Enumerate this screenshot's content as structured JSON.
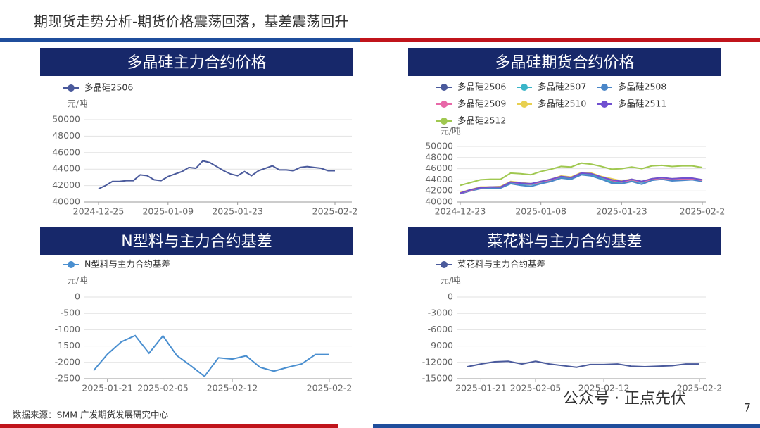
{
  "title": "期现货走势分析-期货价格震荡回落，基差震荡回升",
  "source": "数据来源：SMM 广发期货发展研究中心",
  "watermark": "公众号 · 正点先伏",
  "page_number": "7",
  "chart_data": [
    {
      "type": "line",
      "title": "多晶硅主力合约价格",
      "y_unit": "元/吨",
      "categories": [
        "2024-12-25",
        null,
        null,
        null,
        null,
        null,
        null,
        null,
        null,
        null,
        "2025-01-09",
        null,
        null,
        null,
        null,
        null,
        null,
        null,
        null,
        null,
        "2025-01-23",
        null,
        null,
        null,
        null,
        null,
        null,
        null,
        null,
        null,
        null,
        null,
        null,
        null,
        "2025-02-2"
      ],
      "series": [
        {
          "name": "多晶硅2506",
          "color": "#4a5a9c",
          "values": [
            41600,
            42000,
            42500,
            42500,
            42600,
            42600,
            43300,
            43200,
            42700,
            42600,
            43100,
            43400,
            43700,
            44200,
            44100,
            45000,
            44800,
            44300,
            43800,
            43400,
            43200,
            43700,
            43200,
            43800,
            44100,
            44400,
            43900,
            43900,
            43800,
            44200,
            44300,
            44200,
            44100,
            43800,
            43800
          ]
        }
      ],
      "ylim": [
        40000,
        50000
      ],
      "yticks": [
        40000,
        42000,
        44000,
        46000,
        48000,
        50000
      ],
      "grid": true
    },
    {
      "type": "line",
      "title": "多晶硅期货合约价格",
      "y_unit": "元/吨",
      "categories": [
        "2024-12-23",
        null,
        null,
        null,
        null,
        null,
        null,
        null,
        "2025-01-08",
        null,
        null,
        null,
        null,
        null,
        null,
        null,
        "2025-01-23",
        null,
        null,
        null,
        null,
        null,
        null,
        null,
        "2025-02-2"
      ],
      "series": [
        {
          "name": "多晶硅2506",
          "color": "#4a5a9c",
          "values": [
            41500,
            42000,
            42600,
            42600,
            42700,
            43500,
            43300,
            43200,
            43600,
            44000,
            44500,
            44300,
            45200,
            45000,
            44400,
            43800,
            43500,
            44000,
            43600,
            44100,
            44300,
            44000,
            44100,
            44200,
            43900
          ]
        },
        {
          "name": "多晶硅2507",
          "color": "#3ab5c8",
          "values": [
            41600,
            42100,
            42500,
            42600,
            42600,
            43400,
            43200,
            43100,
            43500,
            43900,
            44400,
            44200,
            45100,
            44900,
            44300,
            43600,
            43400,
            43900,
            43500,
            44000,
            44200,
            43900,
            44000,
            44100,
            43800
          ]
        },
        {
          "name": "多晶硅2508",
          "color": "#4a86c8",
          "values": [
            41500,
            42000,
            42400,
            42500,
            42500,
            43300,
            43000,
            42800,
            43300,
            43700,
            44300,
            44100,
            44900,
            44700,
            44100,
            43400,
            43300,
            43700,
            43200,
            43900,
            44100,
            43800,
            43900,
            44000,
            43700
          ]
        },
        {
          "name": "多晶硅2509",
          "color": "#e868a8",
          "values": [
            41600,
            42100,
            42600,
            42700,
            42700,
            43600,
            43300,
            43200,
            43600,
            44000,
            44600,
            44400,
            45200,
            45100,
            44500,
            43900,
            43600,
            44000,
            43600,
            44100,
            44300,
            44100,
            44200,
            44200,
            43900
          ]
        },
        {
          "name": "多晶硅2510",
          "color": "#e8d050",
          "values": [
            41700,
            42200,
            42700,
            42700,
            42800,
            43700,
            43500,
            43300,
            43700,
            44100,
            44700,
            44500,
            45300,
            45200,
            44600,
            44200,
            43800,
            44100,
            43700,
            44200,
            44400,
            44200,
            44300,
            44300,
            44000
          ]
        },
        {
          "name": "多晶硅2511",
          "color": "#7050d0",
          "values": [
            41600,
            42200,
            42600,
            42700,
            42700,
            43600,
            43400,
            43300,
            43700,
            44100,
            44600,
            44400,
            45200,
            45100,
            44500,
            44000,
            43700,
            44100,
            43700,
            44200,
            44400,
            44200,
            44300,
            44300,
            44000
          ]
        },
        {
          "name": "多晶硅2512",
          "color": "#a0c850",
          "values": [
            43000,
            43500,
            44000,
            44100,
            44100,
            45200,
            45100,
            44900,
            45500,
            45900,
            46400,
            46300,
            47000,
            46800,
            46400,
            45900,
            46000,
            46300,
            46000,
            46500,
            46600,
            46400,
            46500,
            46500,
            46200
          ]
        }
      ],
      "ylim": [
        40000,
        50000
      ],
      "yticks": [
        40000,
        42000,
        44000,
        46000,
        48000,
        50000
      ],
      "grid": true
    },
    {
      "type": "line",
      "title": "N型料与主力合约基差",
      "y_unit": "元/吨",
      "categories": [
        null,
        "2025-01-21",
        null,
        null,
        null,
        "2025-02-05",
        null,
        null,
        null,
        null,
        "2025-02-12",
        null,
        null,
        null,
        null,
        null,
        null,
        "2025-02-2"
      ],
      "series": [
        {
          "name": "N型料与主力合约基差",
          "color": "#4a8fd0",
          "values": [
            -2250,
            -1750,
            -1370,
            -1180,
            -1720,
            -1190,
            -1790,
            -2100,
            -2430,
            -1860,
            -1900,
            -1800,
            -2150,
            -2270,
            -2150,
            -2050,
            -1760,
            -1760
          ]
        }
      ],
      "ylim": [
        -2500,
        0
      ],
      "yticks": [
        -2500,
        -2000,
        -1500,
        -1000,
        -500,
        0
      ],
      "grid": true
    },
    {
      "type": "line",
      "title": "菜花料与主力合约基差",
      "y_unit": "元/吨",
      "categories": [
        null,
        "2025-01-21",
        null,
        null,
        null,
        "2025-02-05",
        null,
        null,
        null,
        null,
        "2025-02-12",
        null,
        null,
        null,
        null,
        null,
        null,
        "2025-02-2"
      ],
      "series": [
        {
          "name": "菜花料与主力合约基差",
          "color": "#4a5a9c",
          "values": [
            -12800,
            -12300,
            -11900,
            -11800,
            -12300,
            -11800,
            -12300,
            -12600,
            -12900,
            -12400,
            -12400,
            -12300,
            -12700,
            -12800,
            -12700,
            -12600,
            -12300,
            -12300
          ]
        }
      ],
      "ylim": [
        -15000,
        0
      ],
      "yticks": [
        -15000,
        -12000,
        -9000,
        -6000,
        -3000,
        0
      ],
      "grid": true
    }
  ]
}
